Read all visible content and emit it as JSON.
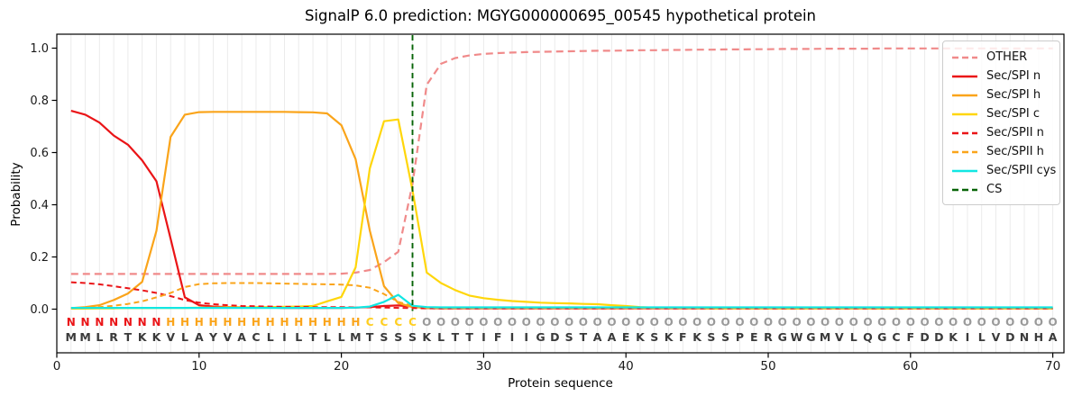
{
  "chart_data": {
    "type": "line",
    "title": "SignalP 6.0 prediction: MGYG000000695_00545 hypothetical protein",
    "xlabel": "Protein sequence",
    "ylabel": "Probability",
    "xlim": [
      0,
      70.8
    ],
    "ylim": [
      -0.167,
      1.053
    ],
    "x_ticks": [
      0,
      10,
      20,
      30,
      40,
      50,
      60,
      70
    ],
    "y_ticks": [
      "0.0",
      "0.2",
      "0.4",
      "0.6",
      "0.8",
      "1.0"
    ],
    "grid": "light vertical gridline at every residue position 1-70",
    "legend_position": "upper right",
    "x": [
      1,
      2,
      3,
      4,
      5,
      6,
      7,
      8,
      9,
      10,
      11,
      12,
      13,
      14,
      15,
      16,
      17,
      18,
      19,
      20,
      21,
      22,
      23,
      24,
      25,
      26,
      27,
      28,
      29,
      30,
      31,
      32,
      33,
      34,
      35,
      36,
      37,
      38,
      39,
      40,
      41,
      42,
      43,
      44,
      45,
      46,
      47,
      48,
      49,
      50,
      51,
      52,
      53,
      54,
      55,
      56,
      57,
      58,
      59,
      60,
      61,
      62,
      63,
      64,
      65,
      66,
      67,
      68,
      69,
      70
    ],
    "series": [
      {
        "name": "OTHER",
        "color": "#f08a8a",
        "dash": "dashed",
        "width": 2.2,
        "values": [
          0.135,
          0.135,
          0.135,
          0.135,
          0.135,
          0.135,
          0.135,
          0.135,
          0.135,
          0.135,
          0.135,
          0.135,
          0.135,
          0.135,
          0.135,
          0.135,
          0.135,
          0.135,
          0.135,
          0.136,
          0.14,
          0.15,
          0.18,
          0.22,
          0.48,
          0.86,
          0.94,
          0.962,
          0.972,
          0.978,
          0.981,
          0.983,
          0.985,
          0.986,
          0.987,
          0.988,
          0.989,
          0.99,
          0.99,
          0.991,
          0.992,
          0.992,
          0.993,
          0.993,
          0.994,
          0.994,
          0.995,
          0.995,
          0.996,
          0.996,
          0.997,
          0.997,
          0.997,
          0.998,
          0.998,
          0.998,
          0.998,
          0.999,
          0.999,
          0.999,
          0.999,
          0.999,
          0.999,
          0.999,
          0.999,
          0.999,
          0.999,
          0.999,
          0.999,
          0.999
        ]
      },
      {
        "name": "Sec/SPI n",
        "color": "#ea1417",
        "dash": "solid",
        "width": 2.2,
        "values": [
          0.76,
          0.745,
          0.715,
          0.665,
          0.63,
          0.57,
          0.49,
          0.27,
          0.045,
          0.015,
          0.01,
          0.008,
          0.007,
          0.006,
          0.006,
          0.005,
          0.005,
          0.005,
          0.005,
          0.005,
          0.006,
          0.008,
          0.012,
          0.014,
          0.01,
          0.004,
          0.003,
          0.003,
          0.003,
          0.003,
          0.003,
          0.003,
          0.003,
          0.003,
          0.003,
          0.003,
          0.003,
          0.003,
          0.003,
          0.003,
          0.003,
          0.003,
          0.003,
          0.003,
          0.003,
          0.003,
          0.003,
          0.003,
          0.003,
          0.003,
          0.003,
          0.003,
          0.003,
          0.003,
          0.003,
          0.003,
          0.003,
          0.003,
          0.003,
          0.003,
          0.003,
          0.003,
          0.003,
          0.003,
          0.003,
          0.003,
          0.003,
          0.003,
          0.003,
          0.003
        ]
      },
      {
        "name": "Sec/SPI h",
        "color": "#faa41a",
        "dash": "solid",
        "width": 2.2,
        "values": [
          0.004,
          0.008,
          0.015,
          0.035,
          0.06,
          0.105,
          0.3,
          0.66,
          0.745,
          0.755,
          0.756,
          0.756,
          0.756,
          0.756,
          0.756,
          0.756,
          0.755,
          0.754,
          0.75,
          0.705,
          0.575,
          0.3,
          0.088,
          0.023,
          0.008,
          0.005,
          0.004,
          0.004,
          0.004,
          0.004,
          0.004,
          0.004,
          0.004,
          0.004,
          0.004,
          0.004,
          0.004,
          0.004,
          0.004,
          0.004,
          0.004,
          0.004,
          0.004,
          0.004,
          0.004,
          0.004,
          0.004,
          0.004,
          0.004,
          0.004,
          0.004,
          0.004,
          0.004,
          0.004,
          0.004,
          0.004,
          0.004,
          0.004,
          0.004,
          0.004,
          0.004,
          0.004,
          0.004,
          0.004,
          0.004,
          0.004,
          0.004,
          0.004,
          0.004,
          0.004
        ]
      },
      {
        "name": "Sec/SPI c",
        "color": "#ffd60a",
        "dash": "solid",
        "width": 2.2,
        "values": [
          0.002,
          0.002,
          0.003,
          0.003,
          0.004,
          0.004,
          0.005,
          0.005,
          0.005,
          0.006,
          0.006,
          0.007,
          0.007,
          0.008,
          0.008,
          0.009,
          0.01,
          0.012,
          0.03,
          0.047,
          0.16,
          0.54,
          0.72,
          0.727,
          0.455,
          0.14,
          0.1,
          0.073,
          0.052,
          0.042,
          0.036,
          0.031,
          0.028,
          0.025,
          0.023,
          0.022,
          0.02,
          0.019,
          0.015,
          0.012,
          0.008,
          0.006,
          0.005,
          0.004,
          0.004,
          0.003,
          0.003,
          0.003,
          0.003,
          0.003,
          0.003,
          0.003,
          0.003,
          0.003,
          0.003,
          0.003,
          0.003,
          0.003,
          0.003,
          0.003,
          0.003,
          0.003,
          0.003,
          0.003,
          0.003,
          0.003,
          0.003,
          0.003,
          0.003,
          0.003
        ]
      },
      {
        "name": "Sec/SPII n",
        "color": "#ea1417",
        "dash": "dashed",
        "width": 2.0,
        "values": [
          0.103,
          0.1,
          0.095,
          0.088,
          0.08,
          0.072,
          0.062,
          0.05,
          0.035,
          0.025,
          0.019,
          0.015,
          0.012,
          0.011,
          0.01,
          0.009,
          0.009,
          0.008,
          0.008,
          0.008,
          0.007,
          0.007,
          0.006,
          0.005,
          0.004,
          0.003,
          0.003,
          0.003,
          0.003,
          0.003,
          0.003,
          0.003,
          0.003,
          0.003,
          0.003,
          0.003,
          0.003,
          0.003,
          0.003,
          0.003,
          0.003,
          0.003,
          0.003,
          0.003,
          0.003,
          0.003,
          0.003,
          0.003,
          0.003,
          0.003,
          0.003,
          0.003,
          0.003,
          0.003,
          0.003,
          0.003,
          0.003,
          0.003,
          0.003,
          0.003,
          0.003,
          0.003,
          0.003,
          0.003,
          0.003,
          0.003,
          0.003,
          0.003,
          0.003,
          0.003
        ]
      },
      {
        "name": "Sec/SPII h",
        "color": "#faa41a",
        "dash": "dashed",
        "width": 2.0,
        "values": [
          0.003,
          0.005,
          0.008,
          0.013,
          0.02,
          0.03,
          0.045,
          0.062,
          0.085,
          0.096,
          0.099,
          0.1,
          0.1,
          0.1,
          0.099,
          0.098,
          0.097,
          0.096,
          0.095,
          0.094,
          0.091,
          0.082,
          0.058,
          0.028,
          0.012,
          0.006,
          0.005,
          0.004,
          0.004,
          0.004,
          0.004,
          0.004,
          0.004,
          0.004,
          0.004,
          0.004,
          0.004,
          0.004,
          0.004,
          0.004,
          0.004,
          0.004,
          0.004,
          0.004,
          0.004,
          0.004,
          0.004,
          0.004,
          0.004,
          0.004,
          0.004,
          0.004,
          0.004,
          0.004,
          0.004,
          0.004,
          0.004,
          0.004,
          0.004,
          0.004,
          0.004,
          0.004,
          0.004,
          0.004,
          0.004,
          0.004,
          0.004,
          0.004,
          0.004,
          0.004
        ]
      },
      {
        "name": "Sec/SPII cys",
        "color": "#11e7e3",
        "dash": "solid",
        "width": 2.2,
        "values": [
          0.005,
          0.005,
          0.005,
          0.005,
          0.005,
          0.005,
          0.005,
          0.005,
          0.005,
          0.005,
          0.005,
          0.005,
          0.005,
          0.005,
          0.005,
          0.005,
          0.005,
          0.005,
          0.005,
          0.005,
          0.006,
          0.01,
          0.028,
          0.055,
          0.013,
          0.008,
          0.007,
          0.007,
          0.007,
          0.007,
          0.007,
          0.007,
          0.007,
          0.007,
          0.007,
          0.007,
          0.007,
          0.007,
          0.007,
          0.007,
          0.007,
          0.007,
          0.007,
          0.007,
          0.007,
          0.007,
          0.007,
          0.007,
          0.007,
          0.007,
          0.007,
          0.007,
          0.007,
          0.007,
          0.007,
          0.007,
          0.007,
          0.007,
          0.007,
          0.007,
          0.007,
          0.007,
          0.007,
          0.007,
          0.007,
          0.007,
          0.007,
          0.007,
          0.007,
          0.007
        ]
      }
    ],
    "cs_line": {
      "name": "CS",
      "x": 25,
      "color": "#066406",
      "dash": "dashed",
      "width": 1.9
    },
    "sequence": "MMLRTKKVLAYVACLILTLLMTSSSKLTTIFIIGDSTAAEKSKFKSSPERGWGMVLQGCFDDKILVDNHA",
    "regions": "NNNNNNNHHHHHHHHHHHHHHCCCCOOOOOOOOOOOOOOOOOOOOOOOOOOOOOOOOOOOOOOOOOOOOO",
    "region_colors": {
      "N": "#ea1417",
      "H": "#faa41a",
      "C": "#ffce1f",
      "O": "#9a9a9a"
    },
    "sequence_color": "#3a3a3a",
    "gridline_color": "#ebebeb",
    "spine_color": "#000000",
    "tick_label_color": "#1a1a1a"
  }
}
